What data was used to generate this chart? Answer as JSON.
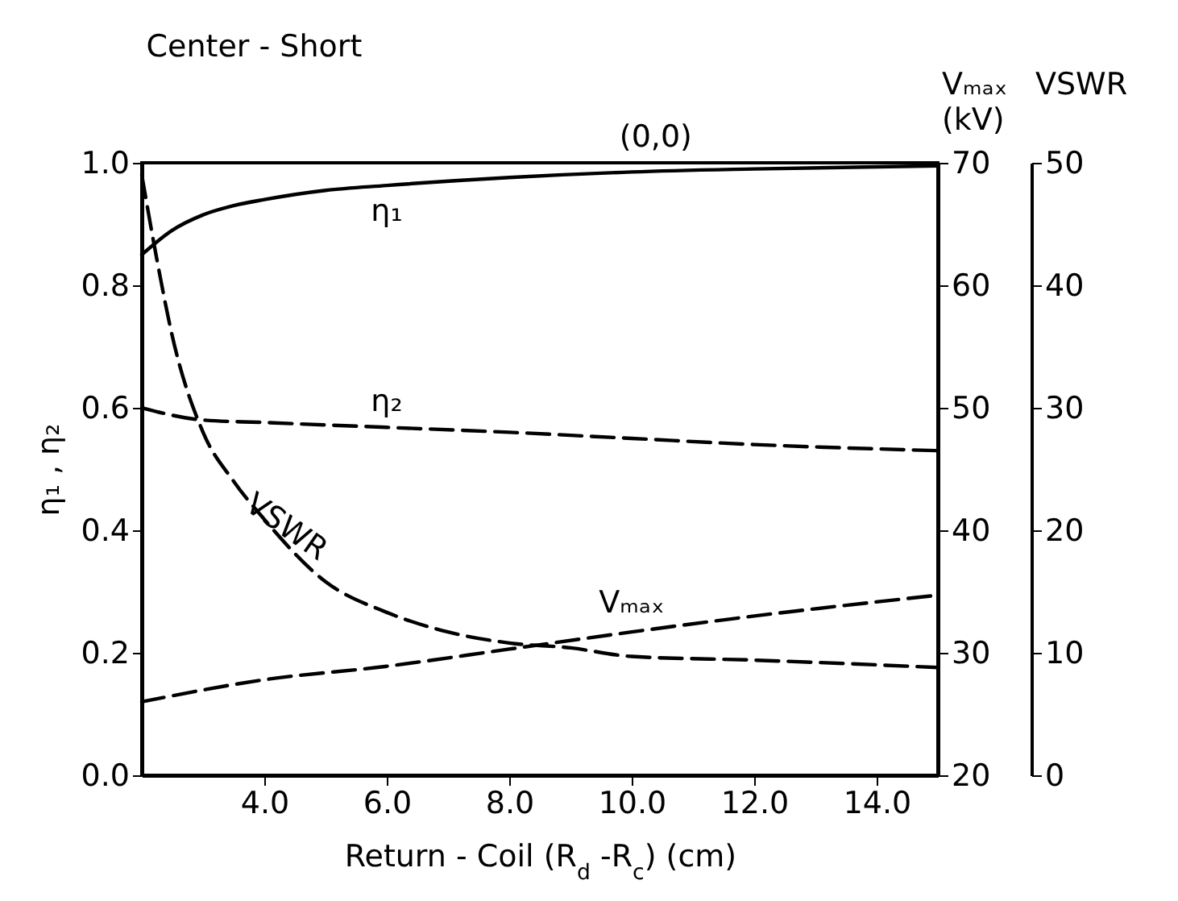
{
  "chart_data": {
    "type": "line",
    "title": "Center - Short",
    "annotations": [
      "(0,0)"
    ],
    "xlabel": "Return - Coil   (R$_{d}$ -R$_{c}$)   (cm)",
    "ylabel": "η₁ , η₂",
    "y2label": "Vₘₐₓ\n(kV)",
    "y3label": "VSWR",
    "xlim": [
      2,
      15
    ],
    "xticks": [
      {
        "value": 4,
        "label": "4.0"
      },
      {
        "value": 6,
        "label": "6.0"
      },
      {
        "value": 8,
        "label": "8.0"
      },
      {
        "value": 10,
        "label": "10.0"
      },
      {
        "value": 12,
        "label": "12.0"
      },
      {
        "value": 14,
        "label": "14.0"
      }
    ],
    "ylim": [
      0,
      1
    ],
    "yticks": [
      {
        "value": 0,
        "label": "0.0"
      },
      {
        "value": 0.2,
        "label": "0.2"
      },
      {
        "value": 0.4,
        "label": "0.4"
      },
      {
        "value": 0.6,
        "label": "0.6"
      },
      {
        "value": 0.8,
        "label": "0.8"
      },
      {
        "value": 1,
        "label": "1.0"
      }
    ],
    "y2lim": [
      20,
      70
    ],
    "y2ticks": [
      20,
      30,
      40,
      50,
      60,
      70
    ],
    "y3lim": [
      0,
      50
    ],
    "y3ticks": [
      0,
      10,
      20,
      30,
      40,
      50
    ],
    "series": [
      {
        "name": "η₁",
        "color": "#000000",
        "line_style": "solid",
        "x": [
          2,
          2.5,
          3,
          3.5,
          4,
          5,
          6,
          8,
          10,
          12,
          15
        ],
        "values": [
          0.85,
          0.89,
          0.915,
          0.93,
          0.94,
          0.955,
          0.963,
          0.976,
          0.985,
          0.99,
          0.995
        ]
      },
      {
        "name": "η₂",
        "color": "#000000",
        "line_style": "dashed",
        "x": [
          2,
          3,
          4,
          6,
          8,
          10,
          12,
          15
        ],
        "values": [
          0.6,
          0.58,
          0.576,
          0.568,
          0.56,
          0.55,
          0.54,
          0.53
        ]
      },
      {
        "name": "Vₘₐₓ",
        "color": "#000000",
        "line_style": "dashed",
        "axis": "y2",
        "x": [
          2,
          4,
          6,
          8,
          10,
          12,
          15
        ],
        "values": [
          26,
          27.8,
          28.9,
          30.3,
          31.7,
          33,
          34.7
        ]
      },
      {
        "name": "VSWR",
        "color": "#000000",
        "line_style": "dashed",
        "axis": "y3",
        "x": [
          2,
          2.25,
          2.5,
          3,
          3.5,
          4,
          5,
          6,
          7,
          8,
          9,
          10,
          12,
          15
        ],
        "values": [
          49,
          42,
          35.8,
          28,
          24,
          20.9,
          15.8,
          13.3,
          11.7,
          10.8,
          10.4,
          9.7,
          9.4,
          8.8
        ]
      }
    ]
  }
}
